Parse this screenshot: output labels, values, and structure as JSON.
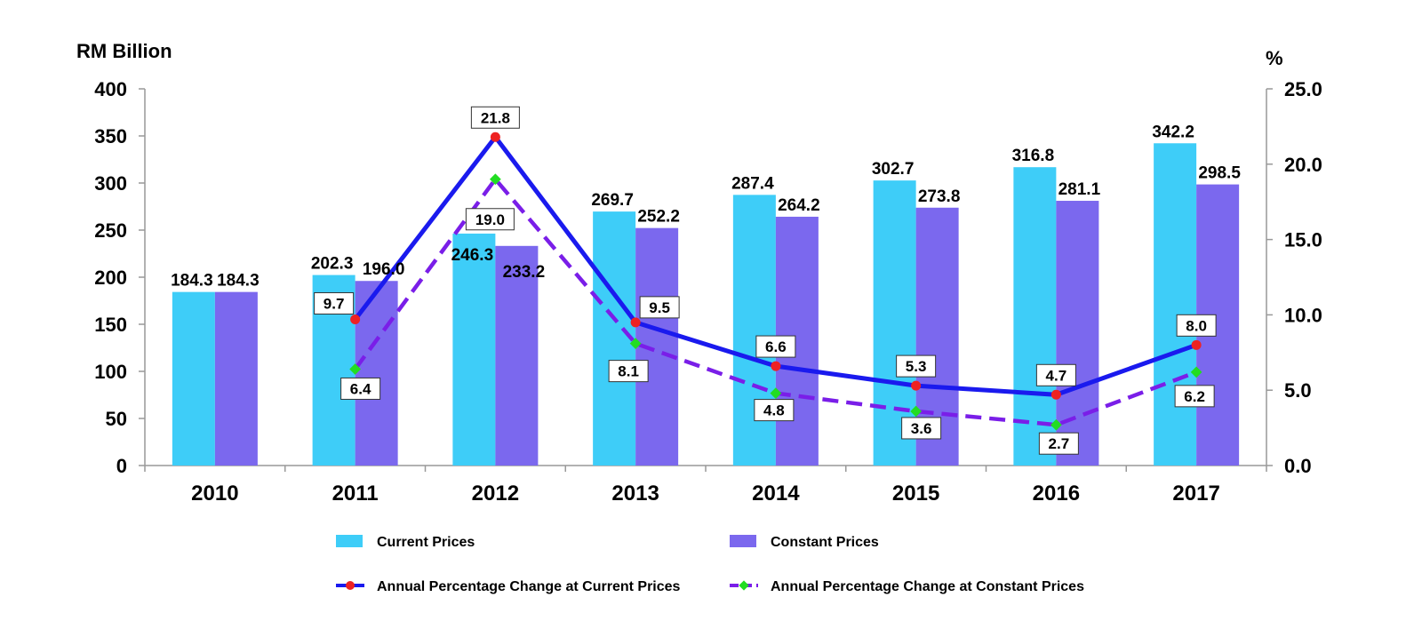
{
  "chart_data": {
    "type": "bar",
    "ylabel_left": "RM Billion",
    "ylabel_right": "%",
    "categories": [
      "2010",
      "2011",
      "2012",
      "2013",
      "2014",
      "2015",
      "2016",
      "2017"
    ],
    "ylim_left": [
      0,
      400
    ],
    "ylim_right": [
      0.0,
      25.0
    ],
    "yticks_left": [
      "0",
      "50",
      "100",
      "150",
      "200",
      "250",
      "300",
      "350",
      "400"
    ],
    "yticks_right": [
      "0.0",
      "5.0",
      "10.0",
      "15.0",
      "20.0",
      "25.0"
    ],
    "grid": false,
    "legend_position": "bottom",
    "bar_series": [
      {
        "name": "Current Prices",
        "color": "#3ecdf8",
        "values": [
          184.3,
          202.3,
          246.3,
          269.7,
          287.4,
          302.7,
          316.8,
          342.2
        ],
        "labels": [
          "184.3",
          "202.3",
          "246.3",
          "269.7",
          "287.4",
          "302.7",
          "316.8",
          "342.2"
        ]
      },
      {
        "name": "Constant Prices",
        "color": "#7b68ee",
        "values": [
          184.3,
          196.0,
          233.2,
          252.2,
          264.2,
          273.8,
          281.1,
          298.5
        ],
        "labels": [
          "184.3",
          "196.0",
          "233.2",
          "252.2",
          "264.2",
          "273.8",
          "281.1",
          "298.5"
        ]
      }
    ],
    "line_series": [
      {
        "name": "Annual Percentage Change at Current Prices",
        "color": "#1a1aee",
        "marker_color": "#ee2222",
        "axis": "right",
        "style": "solid",
        "values": [
          null,
          9.7,
          21.8,
          9.5,
          6.6,
          5.3,
          4.7,
          8.0
        ],
        "labels": [
          null,
          "9.7",
          "21.8",
          "9.5",
          "6.6",
          "5.3",
          "4.7",
          "8.0"
        ]
      },
      {
        "name": "Annual Percentage Change at Constant Prices",
        "color": "#7a1ee8",
        "marker_color": "#22dd22",
        "axis": "right",
        "style": "dashed",
        "values": [
          null,
          6.4,
          19.0,
          8.1,
          4.8,
          3.6,
          2.7,
          6.2
        ],
        "labels": [
          null,
          "6.4",
          "19.0",
          "8.1",
          "4.8",
          "3.6",
          "2.7",
          "6.2"
        ]
      }
    ]
  }
}
